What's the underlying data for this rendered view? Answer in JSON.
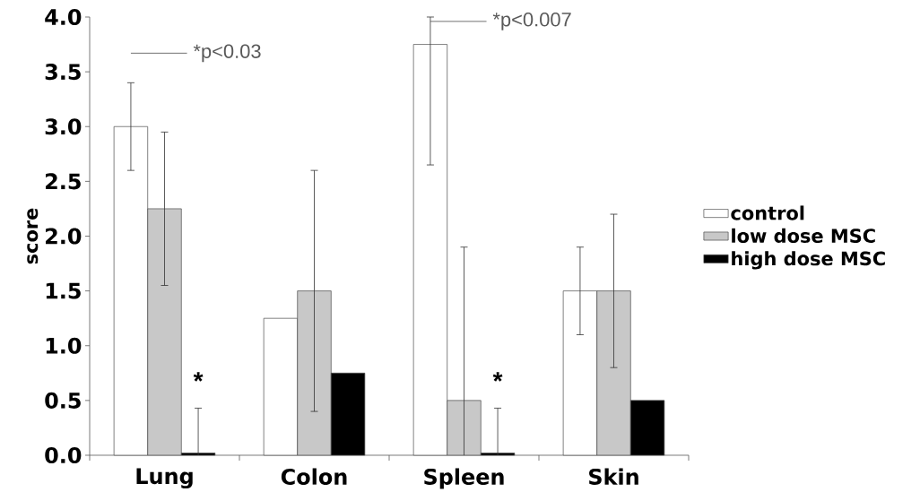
{
  "chart_data": {
    "type": "bar",
    "ylabel": "score",
    "categories": [
      "Lung",
      "Colon",
      "Spleen",
      "Skin"
    ],
    "series": [
      {
        "name": "control",
        "color": "#ffffff",
        "values": [
          3.0,
          1.25,
          3.75,
          1.5
        ],
        "errors": [
          [
            2.6,
            3.4
          ],
          null,
          [
            2.65,
            4.0
          ],
          [
            1.1,
            1.9
          ]
        ]
      },
      {
        "name": "low dose MSC",
        "color": "#c8c8c8",
        "values": [
          2.25,
          1.5,
          0.5,
          1.5
        ],
        "errors": [
          [
            1.55,
            2.95
          ],
          [
            0.4,
            2.6
          ],
          [
            0,
            1.9
          ],
          [
            0.8,
            2.2
          ]
        ]
      },
      {
        "name": "high dose MSC",
        "color": "#000000",
        "values": [
          0.02,
          0.75,
          0.02,
          0.5
        ],
        "errors": [
          [
            0,
            0.43
          ],
          null,
          [
            0,
            0.43
          ],
          null
        ]
      }
    ],
    "ylim": [
      0,
      4.0
    ],
    "yticks": [
      {
        "value": 0,
        "label": "0.0"
      },
      {
        "value": 0.5,
        "label": "0.5"
      },
      {
        "value": 1,
        "label": "1.0"
      },
      {
        "value": 1.5,
        "label": "1.5"
      },
      {
        "value": 2,
        "label": "2.0"
      },
      {
        "value": 2.5,
        "label": "2.5"
      },
      {
        "value": 3,
        "label": "3.0"
      },
      {
        "value": 3.5,
        "label": "3.5"
      },
      {
        "value": 4,
        "label": "4.0"
      }
    ],
    "legend": "right",
    "annotations": [
      "*p<0.03",
      "*p<0.007",
      "*",
      "*"
    ]
  }
}
